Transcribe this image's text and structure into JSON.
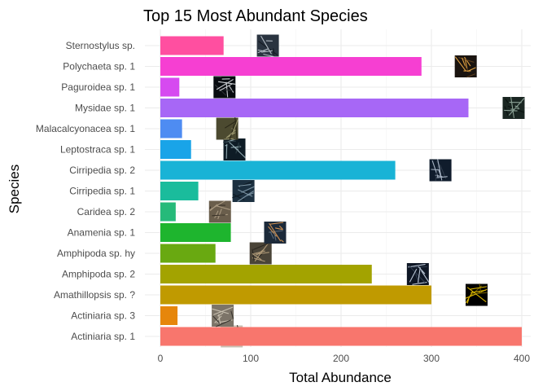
{
  "chart_data": {
    "type": "bar",
    "orientation": "horizontal",
    "title": "Top 15 Most Abundant Species",
    "xlabel": "Total Abundance",
    "ylabel": "Species",
    "xlim": [
      0,
      405
    ],
    "x_ticks": [
      0,
      100,
      200,
      300,
      400
    ],
    "grid": true,
    "legend": "none",
    "categories": [
      "Actiniaria sp. 1",
      "Actiniaria sp. 3",
      "Amathillopsis sp. ?",
      "Amphipoda sp. 2",
      "Amphipoda sp. hy",
      "Anamenia sp. 1",
      "Caridea sp. 2",
      "Cirripedia sp. 1",
      "Cirripedia sp. 2",
      "Leptostraca sp. 1",
      "Malacalcyonacea sp. 1",
      "Mysidae sp. 1",
      "Paguroidea sp. 1",
      "Polychaeta sp. 1",
      "Sternostylus sp."
    ],
    "values": [
      400,
      19,
      300,
      234,
      61,
      78,
      17,
      42,
      260,
      34,
      24,
      341,
      21,
      289,
      70
    ],
    "colors": [
      "#F8766D",
      "#E6860B",
      "#C09A00",
      "#A3A300",
      "#69A911",
      "#1EB52E",
      "#26BA7A",
      "#1ABC9C",
      "#19B3D6",
      "#19A4E8",
      "#4E8CF2",
      "#A767F6",
      "#D64AF0",
      "#F63FD2",
      "#FF4FA0"
    ],
    "thumbnails": [
      {
        "category": "Actiniaria sp. 1",
        "at": 79,
        "palette": [
          "#c9c2b6",
          "#7d776b",
          "#3e3a33"
        ]
      },
      {
        "category": "Actiniaria sp. 3",
        "at": 69,
        "palette": [
          "#7c7468",
          "#c8c0b0",
          "#3a3630"
        ]
      },
      {
        "category": "Amathillopsis sp. ?",
        "at": 350,
        "palette": [
          "#000000",
          "#d8b400",
          "#6b5a00"
        ]
      },
      {
        "category": "Amphipoda sp. 2",
        "at": 285,
        "palette": [
          "#0e1624",
          "#b8c4d4",
          "#2e3a4c"
        ]
      },
      {
        "category": "Amphipoda sp. hy",
        "at": 111,
        "palette": [
          "#4a4438",
          "#b09a78",
          "#2a261f"
        ]
      },
      {
        "category": "Anamenia sp. 1",
        "at": 127,
        "palette": [
          "#1c2a3a",
          "#d09050",
          "#5a6a78"
        ]
      },
      {
        "category": "Caridea sp. 2",
        "at": 66,
        "palette": [
          "#6a5e4c",
          "#a89880",
          "#3a3228"
        ]
      },
      {
        "category": "Cirripedia sp. 1",
        "at": 92,
        "palette": [
          "#1c3040",
          "#7890a0",
          "#0e1a24"
        ]
      },
      {
        "category": "Cirripedia sp. 2",
        "at": 310,
        "palette": [
          "#101c2c",
          "#a8b4c4",
          "#2c3848"
        ]
      },
      {
        "category": "Leptostraca sp. 1",
        "at": 82,
        "palette": [
          "#0e1c26",
          "#90a8b0",
          "#2a3c44"
        ]
      },
      {
        "category": "Malacalcyonacea sp. 1",
        "at": 74,
        "palette": [
          "#4c4a30",
          "#98946c",
          "#2a2818"
        ]
      },
      {
        "category": "Mysidae sp. 1",
        "at": 391,
        "palette": [
          "#1a2622",
          "#8aa094",
          "#0a1210"
        ]
      },
      {
        "category": "Paguroidea sp. 1",
        "at": 71,
        "palette": [
          "#080c10",
          "#c8ccd0",
          "#2c3034"
        ]
      },
      {
        "category": "Polychaeta sp. 1",
        "at": 338,
        "palette": [
          "#1a1410",
          "#e0a040",
          "#5a3c1c"
        ]
      },
      {
        "category": "Sternostylus sp.",
        "at": 119,
        "palette": [
          "#2a3440",
          "#b0b8c0",
          "#141a22"
        ]
      }
    ]
  }
}
